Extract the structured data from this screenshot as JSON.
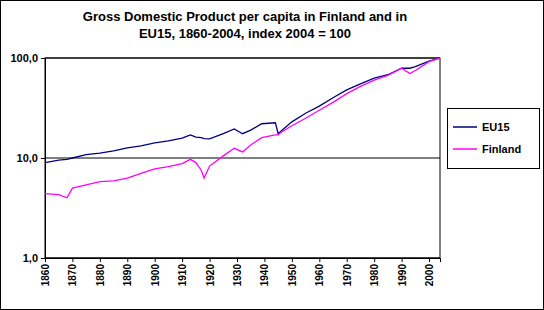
{
  "chart_data": {
    "type": "line",
    "title": [
      "Gross Domestic Product per capita in Finland and in",
      "EU15, 1860-2004, index 2004 = 100"
    ],
    "x": [
      1860,
      1865,
      1868,
      1870,
      1875,
      1880,
      1885,
      1890,
      1895,
      1900,
      1905,
      1910,
      1913,
      1915,
      1917,
      1918,
      1920,
      1925,
      1929,
      1932,
      1935,
      1939,
      1944,
      1945,
      1946,
      1950,
      1955,
      1960,
      1965,
      1970,
      1975,
      1980,
      1985,
      1990,
      1993,
      1995,
      2000,
      2004
    ],
    "series": [
      {
        "name": "EU15",
        "color": "#000080",
        "values": [
          9.0,
          9.5,
          9.7,
          10.0,
          10.8,
          11.2,
          11.8,
          12.6,
          13.2,
          14.2,
          14.8,
          15.8,
          17.0,
          16.2,
          16.0,
          15.6,
          15.5,
          17.5,
          19.5,
          17.5,
          19.0,
          22.0,
          22.5,
          17.5,
          18.5,
          23,
          28,
          33,
          40,
          48,
          55,
          63,
          68,
          79,
          79,
          82,
          93,
          100
        ]
      },
      {
        "name": "Finland",
        "color": "#ff00ff",
        "values": [
          4.4,
          4.3,
          4.0,
          5.0,
          5.4,
          5.8,
          5.9,
          6.3,
          7.0,
          7.8,
          8.2,
          8.8,
          9.7,
          9.0,
          7.5,
          6.3,
          8.3,
          10.5,
          12.5,
          11.5,
          13.5,
          16.0,
          17.0,
          17.0,
          18.0,
          21,
          25,
          30,
          36,
          44,
          52,
          60,
          67,
          79,
          70,
          75,
          92,
          100
        ]
      }
    ],
    "xlim": [
      1860,
      2004
    ],
    "xticks": [
      1860,
      1870,
      1880,
      1890,
      1900,
      1910,
      1920,
      1930,
      1940,
      1950,
      1960,
      1970,
      1980,
      1990,
      2000
    ],
    "ylim": [
      1,
      100
    ],
    "yticks": [
      {
        "value": 1,
        "label": "1,0"
      },
      {
        "value": 10,
        "label": "10,0"
      },
      {
        "value": 100,
        "label": "100,0"
      }
    ],
    "log": "y",
    "grid": true,
    "legend": "right"
  }
}
